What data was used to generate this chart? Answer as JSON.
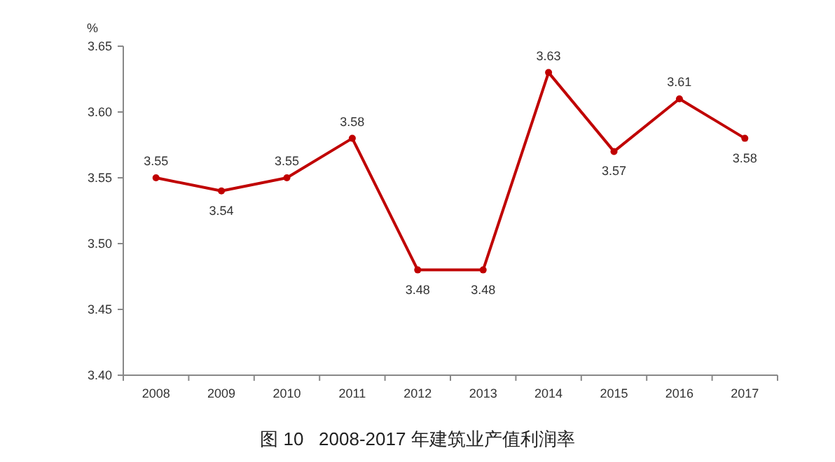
{
  "chart_data": {
    "type": "line",
    "title": "图 10   2008-2017 年建筑业产值利润率",
    "ylabel": "%",
    "categories": [
      "2008",
      "2009",
      "2010",
      "2011",
      "2012",
      "2013",
      "2014",
      "2015",
      "2016",
      "2017"
    ],
    "series": [
      {
        "color": "#c00000",
        "values": [
          3.55,
          3.54,
          3.55,
          3.58,
          3.48,
          3.48,
          3.63,
          3.57,
          3.61,
          3.58
        ]
      }
    ],
    "ylim": [
      3.4,
      3.65
    ],
    "yticks": [
      {
        "value": 3.4,
        "label": "3.40"
      },
      {
        "value": 3.45,
        "label": "3.45"
      },
      {
        "value": 3.5,
        "label": "3.50"
      },
      {
        "value": 3.55,
        "label": "3.55"
      },
      {
        "value": 3.6,
        "label": "3.60"
      },
      {
        "value": 3.65,
        "label": "3.65"
      }
    ],
    "marker": "circle",
    "line_style": "solid",
    "grid": false,
    "data_labels": true
  }
}
